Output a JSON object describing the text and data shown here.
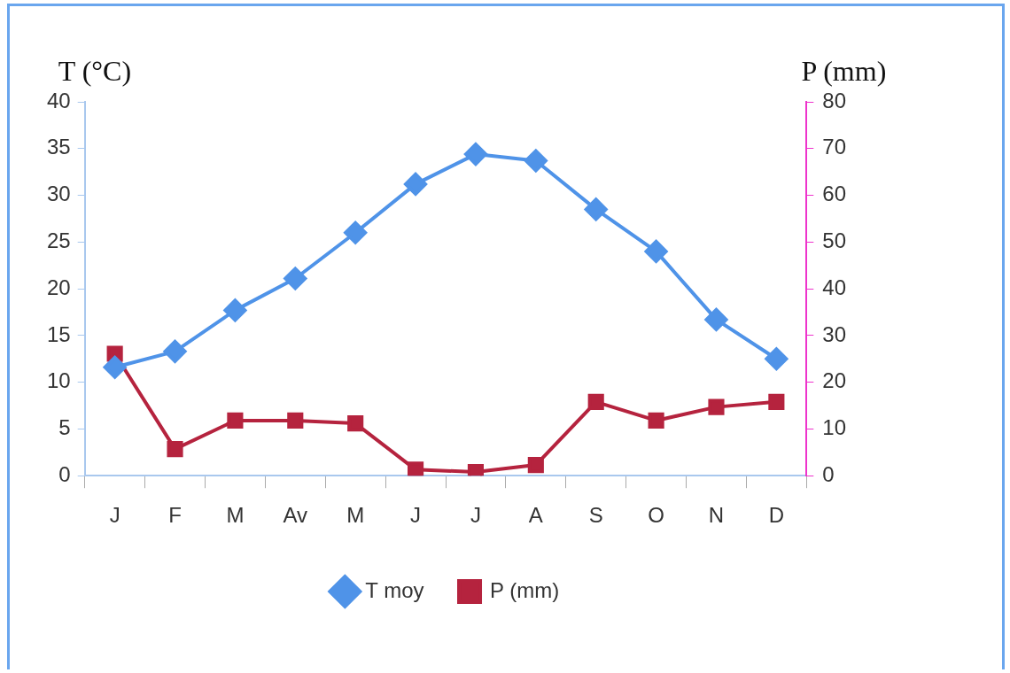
{
  "chart_data": {
    "type": "line",
    "ylabel": "T (°C)",
    "y2label": "P (mm)",
    "categories": [
      "J",
      "F",
      "M",
      "Av",
      "M",
      "J",
      "J",
      "A",
      "S",
      "O",
      "N",
      "D"
    ],
    "series": [
      {
        "name": "T moy",
        "color": "#4f93e8",
        "marker": "diamond",
        "values": [
          11.6,
          13.3,
          17.7,
          21.1,
          26,
          31.2,
          34.4,
          33.7,
          28.5,
          24,
          16.7,
          12.5
        ]
      },
      {
        "name": "P (mm)",
        "color": "#b5233e",
        "marker": "square",
        "axis": "y2",
        "values": [
          26.1,
          5.7,
          11.8,
          11.8,
          11.2,
          1.3,
          0.8,
          2.3,
          15.8,
          11.8,
          14.7,
          15.8
        ]
      }
    ],
    "ylim": [
      0,
      40
    ],
    "yticks": [
      0,
      5,
      10,
      15,
      20,
      25,
      30,
      35,
      40
    ],
    "y2lim": [
      0,
      80
    ],
    "y2ticks": [
      0,
      10,
      20,
      30,
      40,
      50,
      60,
      70,
      80
    ],
    "grid": false,
    "legend": "bottom"
  }
}
